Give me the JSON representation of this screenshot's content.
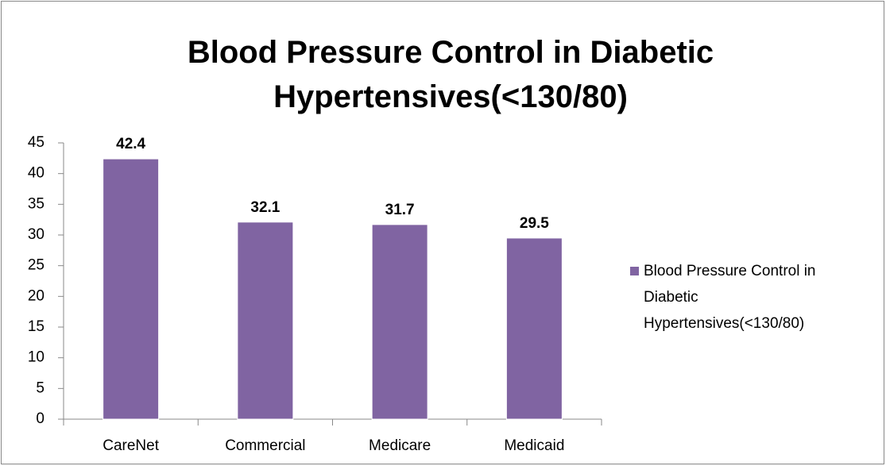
{
  "chart_data": {
    "type": "bar",
    "title": "Blood Pressure Control in Diabetic Hypertensives(<130/80)",
    "categories": [
      "CareNet",
      "Commercial",
      "Medicare",
      "Medicaid"
    ],
    "series": [
      {
        "name": "Blood Pressure Control in Diabetic Hypertensives(<130/80)",
        "color": "#8064a2",
        "values": [
          42.4,
          32.1,
          31.7,
          29.5
        ]
      }
    ],
    "ylim": [
      0,
      45
    ],
    "yticks": [
      0,
      5,
      10,
      15,
      20,
      25,
      30,
      35,
      40,
      45
    ],
    "grid": false,
    "legend": "right"
  }
}
